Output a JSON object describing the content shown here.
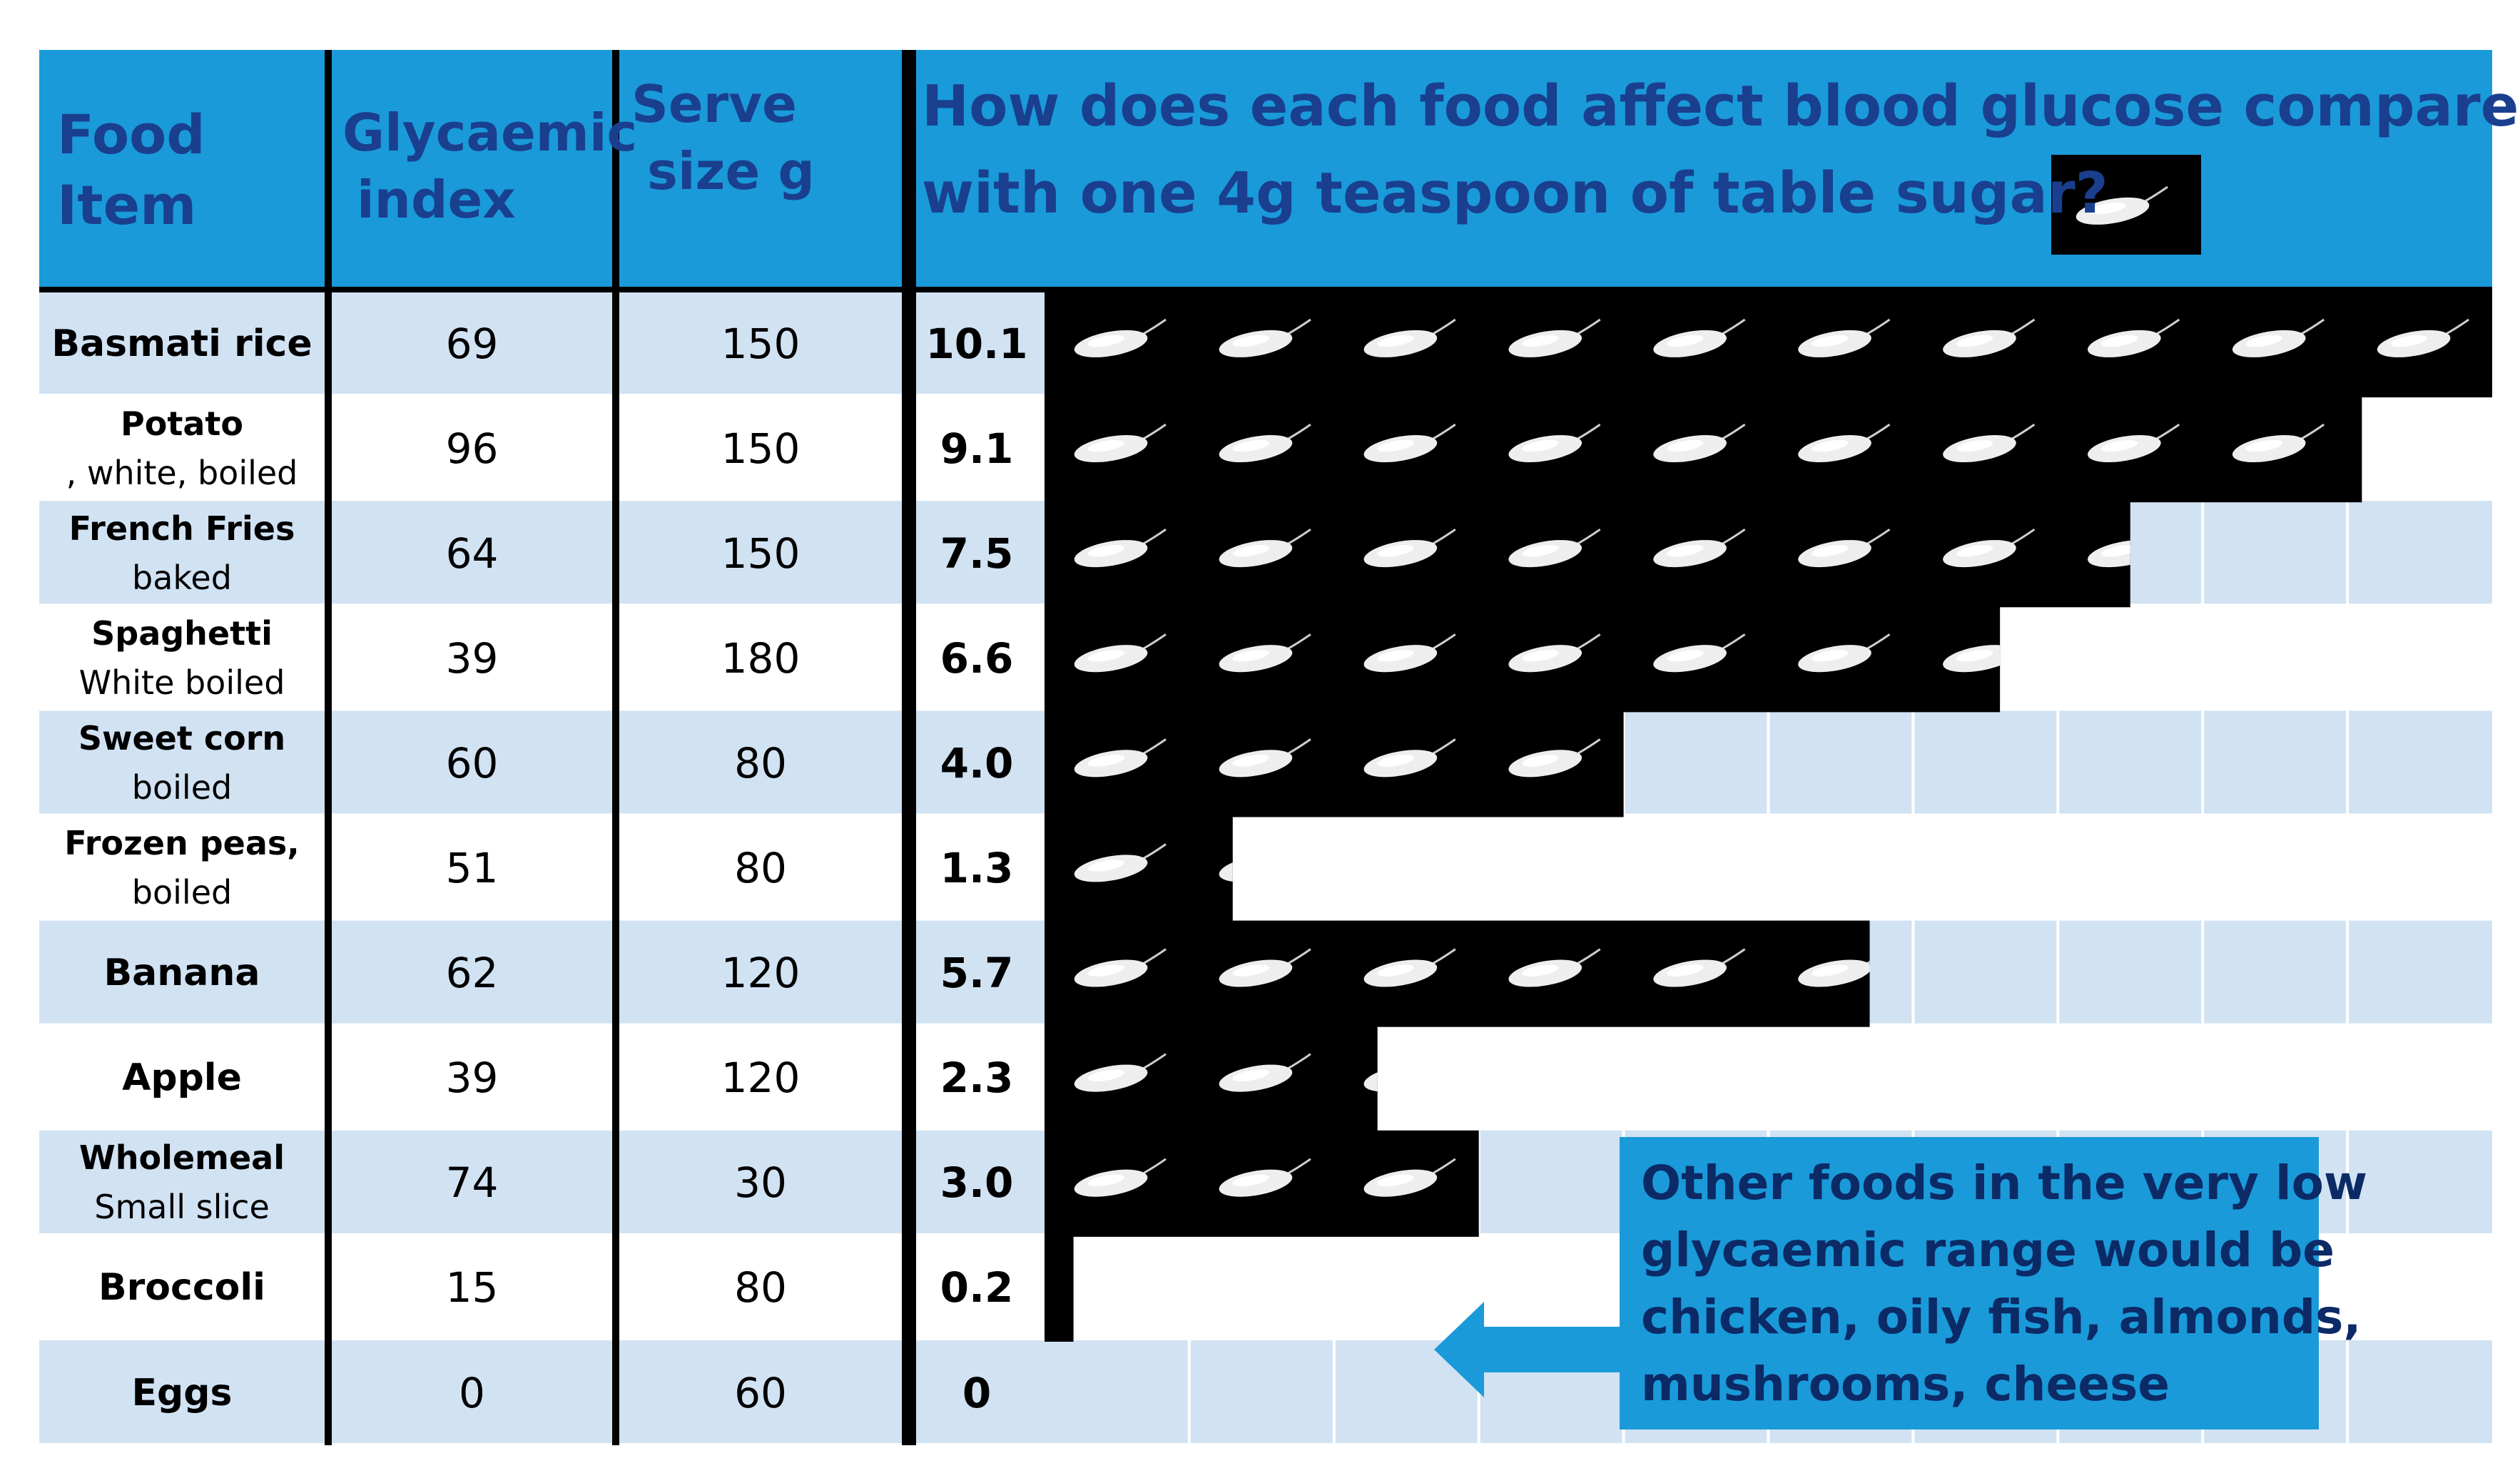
{
  "header": {
    "food_item": [
      "Food",
      "Item"
    ],
    "glycaemic_index": [
      "Glycaemic",
      "index"
    ],
    "serve_size": [
      "Serve",
      "size g"
    ],
    "question": [
      "How does each food affect blood glucose compared",
      "with one 4g teaspoon of table sugar?"
    ]
  },
  "note": {
    "lines": [
      "Other foods in the very low",
      "glycaemic range would be",
      "chicken, oily fish, almonds,",
      "mushrooms, cheese"
    ]
  },
  "colors": {
    "header_bg": "#1a9ad9",
    "header_text": "#1a3f8f",
    "row_blue": "#d1e2f3",
    "row_white": "#ffffff",
    "bar_black": "#000000",
    "spoon_white": "#eeeeee"
  },
  "chart_data": {
    "type": "table",
    "title": "How does each food affect blood glucose compared with one 4g teaspoon of table sugar?",
    "columns": [
      "Food Item",
      "Glycaemic index",
      "Serve size g",
      "Teaspoons of sugar"
    ],
    "rows": [
      {
        "food": "Basmati rice",
        "detail": "",
        "gi": "69",
        "serve": "150",
        "tsp": "10.1",
        "value": 10.1
      },
      {
        "food": "Potato",
        "detail": ", white, boiled",
        "gi": "96",
        "serve": "150",
        "tsp": "9.1",
        "value": 9.1
      },
      {
        "food": "French Fries",
        "detail": "baked",
        "gi": "64",
        "serve": "150",
        "tsp": "7.5",
        "value": 7.5
      },
      {
        "food": "Spaghetti",
        "detail": " White boiled",
        "gi": "39",
        "serve": "180",
        "tsp": "6.6",
        "value": 6.6
      },
      {
        "food": "Sweet corn",
        "detail": "boiled",
        "gi": "60",
        "serve": "80",
        "tsp": "4.0",
        "value": 4.0
      },
      {
        "food": "Frozen peas,",
        "detail": "boiled",
        "gi": "51",
        "serve": "80",
        "tsp": "1.3",
        "value": 1.3
      },
      {
        "food": "Banana",
        "detail": "",
        "gi": "62",
        "serve": "120",
        "tsp": "5.7",
        "value": 5.7
      },
      {
        "food": "Apple",
        "detail": "",
        "gi": "39",
        "serve": "120",
        "tsp": "2.3",
        "value": 2.3
      },
      {
        "food": "Wholemeal",
        "detail": "Small slice",
        "gi": "74",
        "serve": "30",
        "tsp": "3.0",
        "value": 3.0
      },
      {
        "food": "Broccoli",
        "detail": "",
        "gi": "15",
        "serve": "80",
        "tsp": "0.2",
        "value": 0.2
      },
      {
        "food": "Eggs",
        "detail": "",
        "gi": "0",
        "serve": "60",
        "tsp": "0",
        "value": 0
      }
    ],
    "max_teaspoons": 10
  }
}
